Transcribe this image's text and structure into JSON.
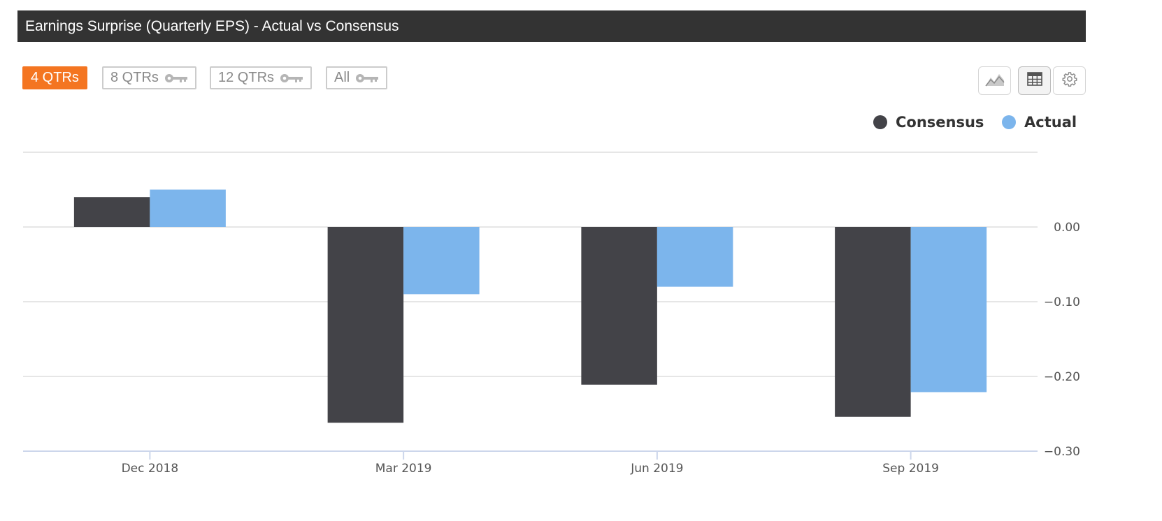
{
  "header": {
    "title": "Earnings Surprise (Quarterly EPS) - Actual vs Consensus"
  },
  "range_buttons": [
    {
      "label": "4 QTRs",
      "active": true,
      "locked": false
    },
    {
      "label": "8 QTRs",
      "active": false,
      "locked": true
    },
    {
      "label": "12 QTRs",
      "active": false,
      "locked": true
    },
    {
      "label": "All",
      "active": false,
      "locked": true
    }
  ],
  "toolbar": {
    "icons": [
      "area-chart-icon",
      "table-icon",
      "gear-icon"
    ]
  },
  "colors": {
    "consensus": "#434348",
    "actual": "#7cb5ec",
    "accent": "#f47521"
  },
  "chart_data": {
    "type": "bar",
    "categories": [
      "Dec 2018",
      "Mar 2019",
      "Jun 2019",
      "Sep 2019"
    ],
    "series": [
      {
        "name": "Consensus",
        "values": [
          0.04,
          -0.262,
          -0.211,
          -0.254
        ]
      },
      {
        "name": "Actual",
        "values": [
          0.05,
          -0.09,
          -0.08,
          -0.221
        ]
      }
    ],
    "yticks": [
      "0.00",
      "−0.10",
      "−0.20",
      "−0.30"
    ],
    "ylim": [
      -0.3,
      0.1
    ],
    "yaxis_side": "right",
    "legend_position": "top-right",
    "grid": true
  }
}
